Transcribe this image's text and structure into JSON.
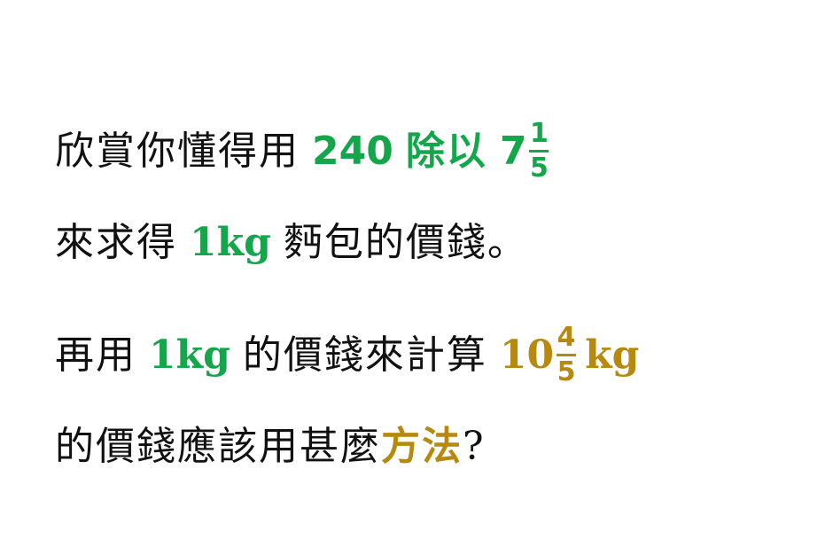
{
  "line1": {
    "text": "欣賞你懂得用",
    "hl_number": "240",
    "hl_word": "除以",
    "mixed_whole": "7",
    "mixed_num": "1",
    "mixed_den": "5"
  },
  "line2": {
    "text_before": "來求得",
    "hl_unit": "1kg",
    "text_after": "麪包的價錢。"
  },
  "line3": {
    "text_before": "再用",
    "hl_unit": "1kg",
    "text_middle": "的價錢來計算",
    "mixed_whole": "10",
    "mixed_num": "4",
    "mixed_den": "5",
    "unit": "kg"
  },
  "line4": {
    "text_before": "的價錢應該用甚麼",
    "hl_word": "方法",
    "punct": "?"
  },
  "colors": {
    "green": "#14a64a",
    "gold": "#b8890f",
    "text": "#111111"
  }
}
